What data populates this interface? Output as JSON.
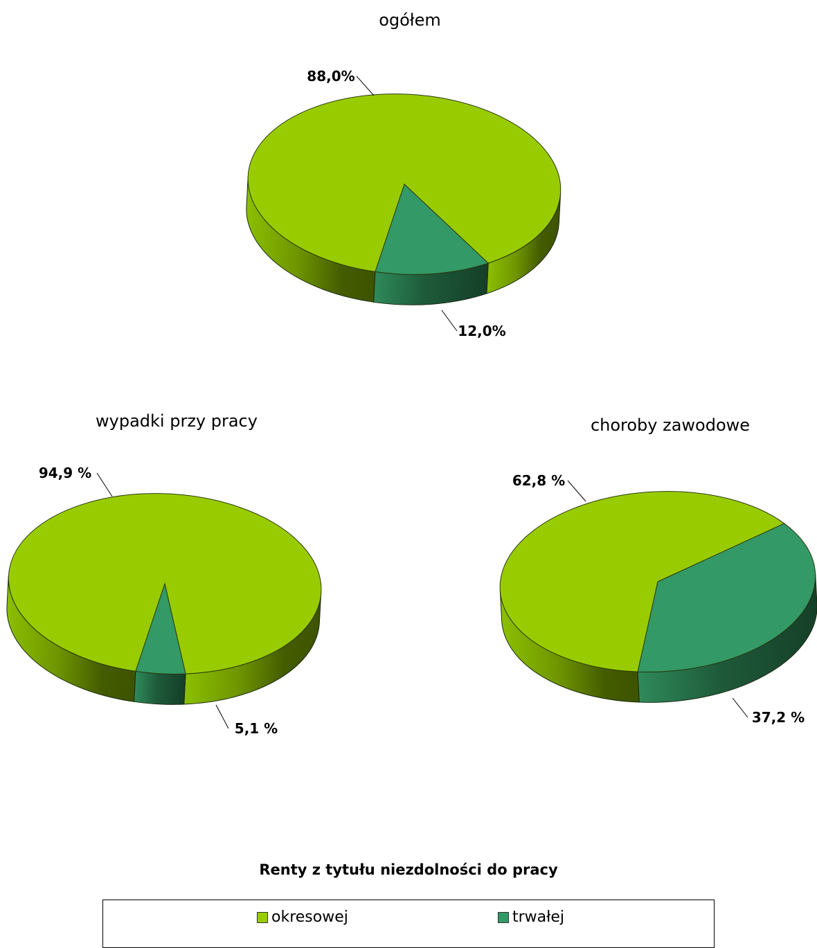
{
  "chart_data": [
    {
      "type": "pie",
      "title": "ogółem",
      "categories": [
        "okresowej",
        "trwałej"
      ],
      "values": [
        88.0,
        12.0
      ],
      "data_labels": [
        "88,0%",
        "12,0%"
      ]
    },
    {
      "type": "pie",
      "title": "wypadki przy pracy",
      "categories": [
        "okresowej",
        "trwałej"
      ],
      "values": [
        94.9,
        5.1
      ],
      "data_labels": [
        "94,9 %",
        "5,1 %"
      ]
    },
    {
      "type": "pie",
      "title": "choroby zawodowe",
      "categories": [
        "okresowej",
        "trwałej"
      ],
      "values": [
        62.8,
        37.2
      ],
      "data_labels": [
        "62,8 %",
        "37,2 %"
      ]
    }
  ],
  "legend": {
    "title": "Renty z tytułu niezdolności do pracy",
    "placement": "bottom",
    "items": [
      {
        "label": "okresowej",
        "color": "#99cc00"
      },
      {
        "label": "trwałej",
        "color": "#339966"
      }
    ]
  },
  "colors": {
    "okresowej": "#99cc00",
    "trwałej": "#339966"
  }
}
